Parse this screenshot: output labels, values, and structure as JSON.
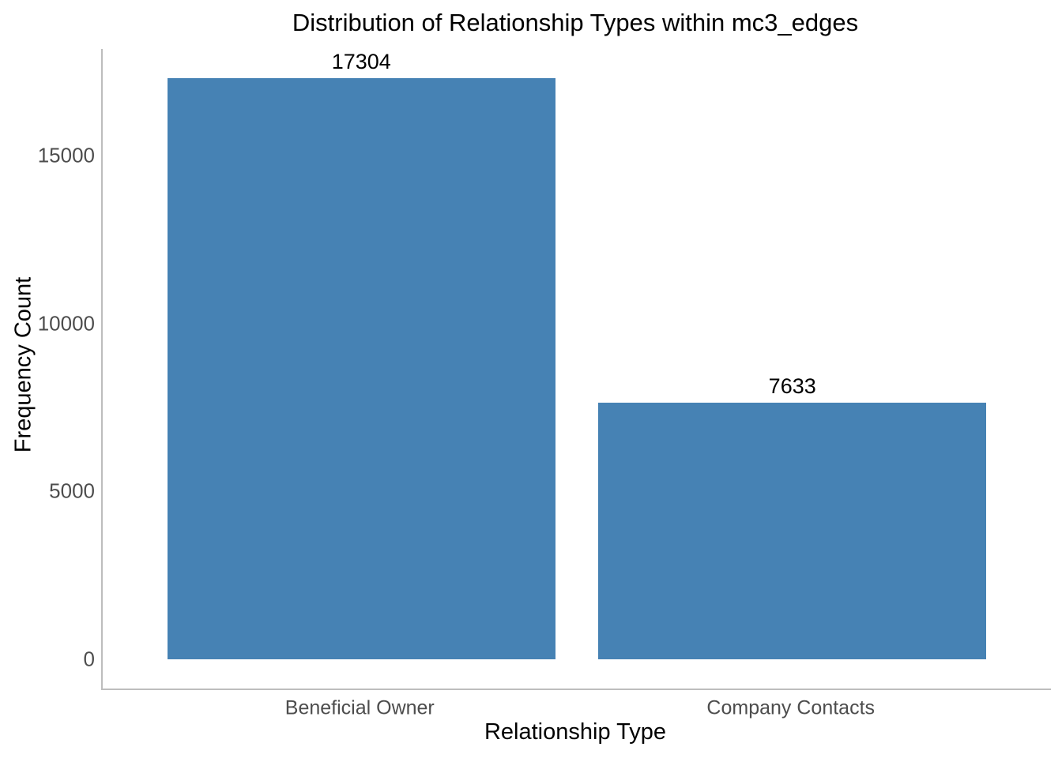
{
  "chart_data": {
    "type": "bar",
    "title": "Distribution of Relationship Types within mc3_edges",
    "xlabel": "Relationship Type",
    "ylabel": "Frequency Count",
    "categories": [
      "Beneficial Owner",
      "Company Contacts"
    ],
    "values": [
      17304,
      7633
    ],
    "bar_labels": [
      "17304",
      "7633"
    ],
    "yticks": [
      0,
      5000,
      10000,
      15000
    ],
    "ylim": [
      -865,
      18170
    ],
    "grid": false,
    "legend": false,
    "colors": {
      "bar": "#4682B4",
      "tick_text": "#4d4d4d",
      "axis_line": "#bdbdbd",
      "title_text": "#000000",
      "background": "#ffffff"
    }
  }
}
